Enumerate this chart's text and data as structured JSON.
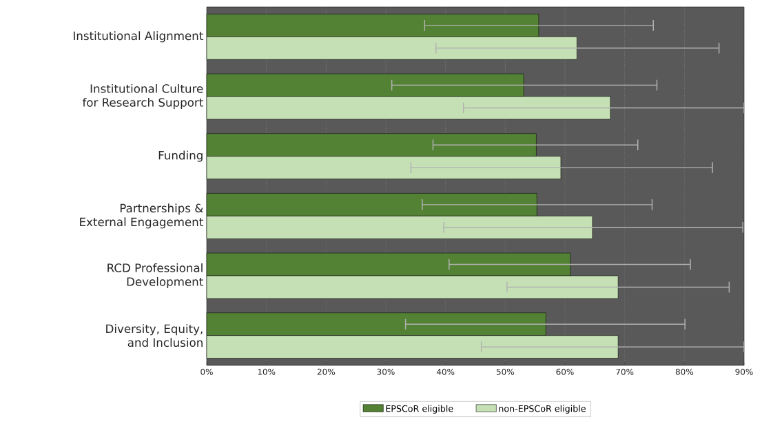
{
  "chart_data": {
    "type": "bar",
    "orientation": "horizontal",
    "categories": [
      "Institutional Alignment",
      "Institutional Culture\nfor Research Support",
      "Funding",
      "Partnerships &\nExternal Engagement",
      "RCD Professional\nDevelopment",
      "Diversity, Equity,\nand Inclusion"
    ],
    "series": [
      {
        "name": "EPSCoR eligible",
        "color": "#548235",
        "values": [
          55.6,
          53.1,
          55.2,
          55.3,
          60.9,
          56.8
        ],
        "errors": [
          [
            36.5,
            74.8
          ],
          [
            31.0,
            75.4
          ],
          [
            37.9,
            72.2
          ],
          [
            36.1,
            74.6
          ],
          [
            40.6,
            81.0
          ],
          [
            33.3,
            80.1
          ]
        ]
      },
      {
        "name": "non-EPSCoR eligible",
        "color": "#c5e0b4",
        "values": [
          62.0,
          67.6,
          59.3,
          64.6,
          68.9,
          68.9
        ],
        "errors": [
          [
            38.4,
            85.8
          ],
          [
            43.0,
            90
          ],
          [
            34.2,
            84.7
          ],
          [
            39.7,
            89.8
          ],
          [
            50.3,
            87.5
          ],
          [
            46.0,
            90
          ]
        ]
      }
    ],
    "xlim": [
      0,
      90
    ],
    "xticks": [
      {
        "value": 0,
        "label": "0%"
      },
      {
        "value": 10,
        "label": "10%"
      },
      {
        "value": 20,
        "label": "20%"
      },
      {
        "value": 30,
        "label": "30%"
      },
      {
        "value": 40,
        "label": "40%"
      },
      {
        "value": 50,
        "label": "50%"
      },
      {
        "value": 60,
        "label": "60%"
      },
      {
        "value": 70,
        "label": "70%"
      },
      {
        "value": 80,
        "label": "80%"
      },
      {
        "value": 90,
        "label": "90%"
      }
    ],
    "grid": "x",
    "legend": "bottom"
  }
}
